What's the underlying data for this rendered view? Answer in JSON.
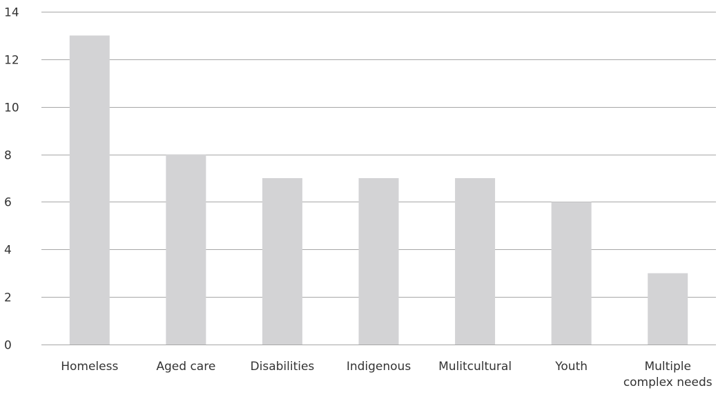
{
  "chart_data": {
    "type": "bar",
    "title": "",
    "xlabel": "",
    "ylabel": "",
    "categories": [
      [
        "Homeless"
      ],
      [
        "Aged care"
      ],
      [
        "Disabilities"
      ],
      [
        "Indigenous"
      ],
      [
        "Mulitcultural"
      ],
      [
        "Youth"
      ],
      [
        "Multiple",
        "complex needs"
      ]
    ],
    "values": [
      13,
      8,
      7,
      7,
      7,
      6,
      3
    ],
    "ylim": [
      0,
      14
    ],
    "yticks": [
      0,
      2,
      4,
      6,
      8,
      10,
      12,
      14
    ],
    "grid": true,
    "legend": "none",
    "colors": {
      "bar": "#d3d3d5",
      "grid": "#a6a6a6",
      "axis": "#a6a6a6",
      "text": "#333333"
    }
  }
}
